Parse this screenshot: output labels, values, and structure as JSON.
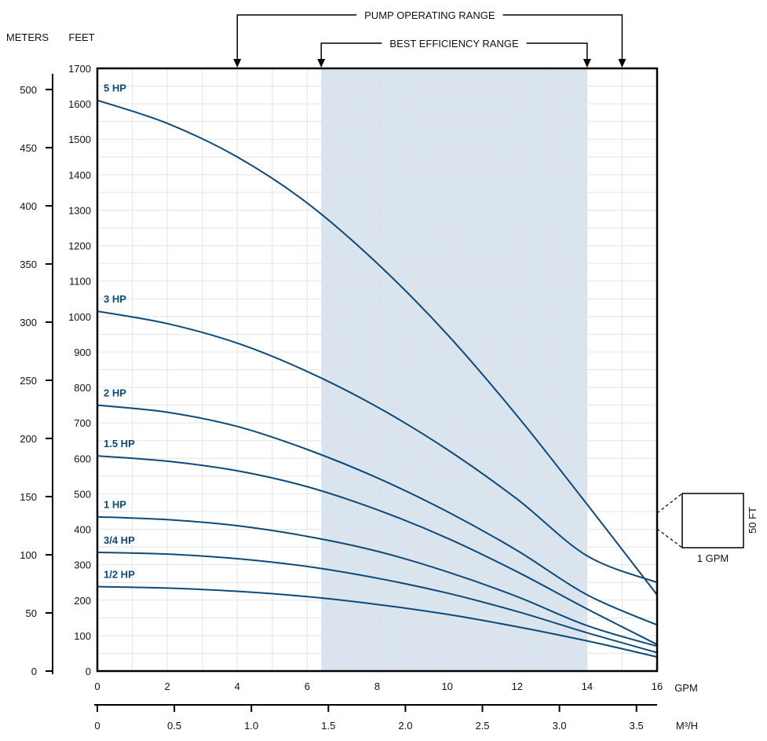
{
  "chart_data": {
    "type": "line",
    "x_unit_label": "GPM",
    "x2_unit_label": "M³/H",
    "y_left_unit_label": "METERS",
    "y_right_unit_label": "FEET",
    "x_range": [
      0,
      16
    ],
    "y_range_feet": [
      0,
      1700
    ],
    "x_ticks": [
      0,
      2,
      4,
      6,
      8,
      10,
      12,
      14,
      16
    ],
    "x2_ticks": [
      {
        "label": "0",
        "value": 0
      },
      {
        "label": "0.5",
        "value": 0.5
      },
      {
        "label": "1.0",
        "value": 1.0
      },
      {
        "label": "1.5",
        "value": 1.5
      },
      {
        "label": "2.0",
        "value": 2.0
      },
      {
        "label": "2.5",
        "value": 2.5
      },
      {
        "label": "3.0",
        "value": 3.0
      },
      {
        "label": "3.5",
        "value": 3.5
      }
    ],
    "feet_ticks": [
      0,
      100,
      200,
      300,
      400,
      500,
      600,
      700,
      800,
      900,
      1000,
      1100,
      1200,
      1300,
      1400,
      1500,
      1600,
      1700
    ],
    "meter_ticks": [
      0,
      50,
      100,
      150,
      200,
      250,
      300,
      350,
      400,
      450,
      500
    ],
    "grid": true,
    "annotations": {
      "pump_operating_range": {
        "label": "PUMP OPERATING RANGE",
        "start_gpm": 4,
        "end_gpm": 15
      },
      "best_efficiency_range": {
        "label": "BEST EFFICIENCY RANGE",
        "start_gpm": 6.4,
        "end_gpm": 14
      }
    },
    "scale_box": {
      "width_label": "1 GPM",
      "height_label": "50 FT"
    },
    "series_color": "#0c4a7c",
    "shade_color": "#d9e4ee",
    "series": [
      {
        "name": "5 HP",
        "x": [
          0,
          2,
          4,
          6,
          8,
          10,
          12,
          14,
          16
        ],
        "y": [
          1610,
          1545,
          1450,
          1320,
          1150,
          950,
          720,
          470,
          215
        ]
      },
      {
        "name": "3 HP",
        "x": [
          0,
          2,
          4,
          6,
          8,
          10,
          12,
          14,
          16
        ],
        "y": [
          1015,
          980,
          925,
          845,
          745,
          625,
          485,
          325,
          250
        ]
      },
      {
        "name": "2 HP",
        "x": [
          0,
          2,
          4,
          6,
          8,
          10,
          12,
          14,
          16
        ],
        "y": [
          750,
          730,
          690,
          625,
          545,
          450,
          340,
          215,
          130
        ]
      },
      {
        "name": "1.5 HP",
        "x": [
          0,
          2,
          4,
          6,
          8,
          10,
          12,
          14,
          16
        ],
        "y": [
          607,
          592,
          565,
          520,
          455,
          375,
          280,
          175,
          75
        ]
      },
      {
        "name": "1 HP",
        "x": [
          0,
          2,
          4,
          6,
          8,
          10,
          12,
          14,
          16
        ],
        "y": [
          435,
          427,
          410,
          380,
          338,
          280,
          210,
          128,
          70
        ]
      },
      {
        "name": "3/4 HP",
        "x": [
          0,
          2,
          4,
          6,
          8,
          10,
          12,
          14,
          16
        ],
        "y": [
          335,
          330,
          317,
          295,
          262,
          220,
          168,
          108,
          52
        ]
      },
      {
        "name": "1/2 HP",
        "x": [
          0,
          2,
          4,
          6,
          8,
          10,
          12,
          14,
          16
        ],
        "y": [
          238,
          234,
          225,
          210,
          188,
          160,
          125,
          85,
          40
        ]
      }
    ]
  }
}
